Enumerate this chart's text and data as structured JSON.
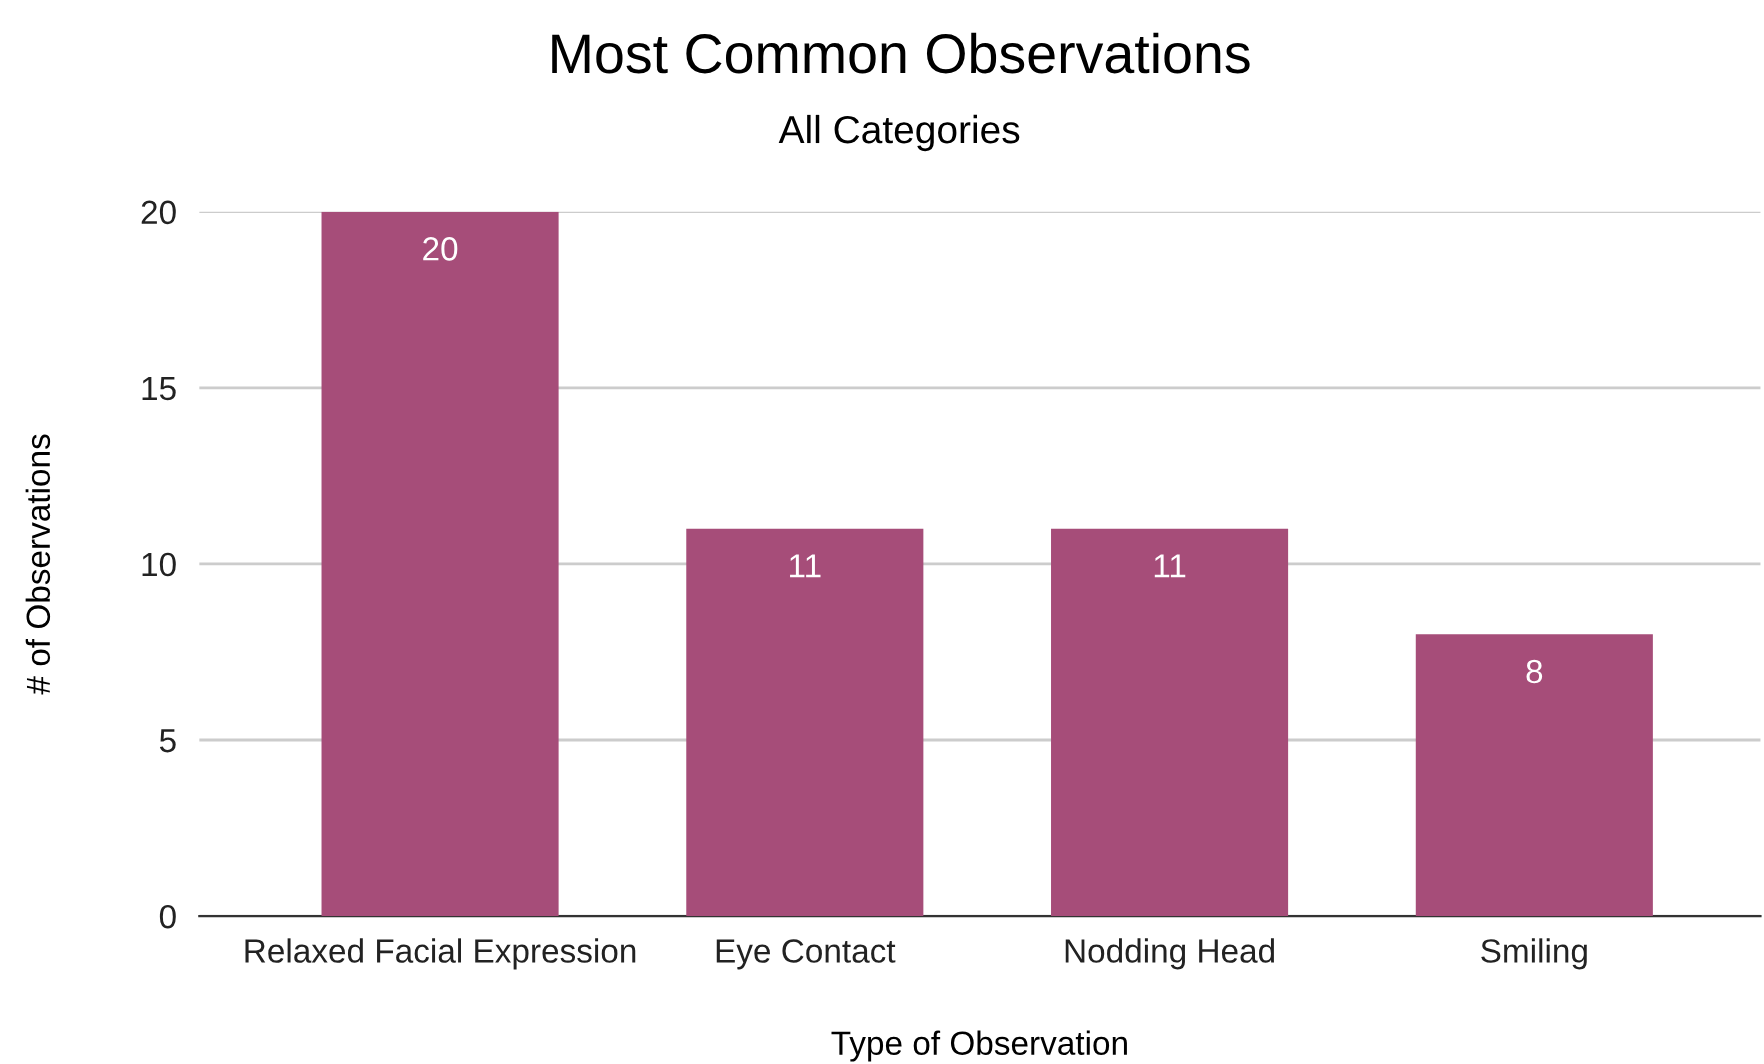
{
  "chart_data": {
    "type": "bar",
    "title": "Most Common Observations",
    "subtitle": "All Categories",
    "xlabel": "Type of Observation",
    "ylabel": "# of Observations",
    "categories": [
      "Relaxed Facial Expression",
      "Eye Contact",
      "Nodding Head",
      "Smiling"
    ],
    "values": [
      20,
      11,
      11,
      8
    ],
    "color": "#a64d79",
    "ylim": [
      0,
      20
    ],
    "yticks": [
      0,
      5,
      10,
      15,
      20
    ],
    "grid": "y",
    "data_labels": true
  }
}
